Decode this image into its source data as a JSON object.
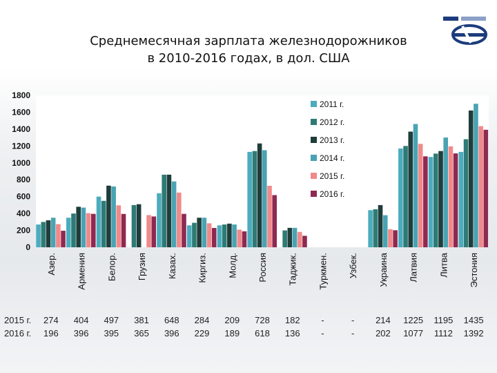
{
  "title_line1": "Среднемесячная зарплата железнодорожников",
  "title_line2": "в 2010-2016 годах, в дол. США",
  "colors": {
    "2011 г.": "#4cacbd",
    "2012 г.": "#2e7b76",
    "2013 г.": "#1f3d3a",
    "2014 г.": "#49a3b3",
    "2015 г.": "#f08a8a",
    "2016 г.": "#8e2a52"
  },
  "chart_data": {
    "type": "bar",
    "ylim": [
      0,
      1800
    ],
    "yticks": [
      "0",
      "200",
      "400",
      "600",
      "800",
      "1000",
      "1200",
      "1400",
      "1600",
      "1800"
    ],
    "categories": [
      "Азер.",
      "Армения",
      "Белор.",
      "Грузия",
      "Казах.",
      "Киргиз.",
      "Молд.",
      "Россия",
      "Таджик.",
      "Туркмен.",
      "Узбек.",
      "Украина",
      "Латвия",
      "Литва",
      "Эстония"
    ],
    "series": [
      {
        "name": "2011 г.",
        "values": [
          270,
          350,
          600,
          0,
          640,
          260,
          260,
          1130,
          0,
          0,
          0,
          440,
          1170,
          1070,
          1130
        ]
      },
      {
        "name": "2012 г.",
        "values": [
          300,
          400,
          550,
          500,
          860,
          290,
          270,
          1140,
          200,
          0,
          0,
          450,
          1200,
          1110,
          1280
        ]
      },
      {
        "name": "2013 г.",
        "values": [
          320,
          480,
          730,
          510,
          860,
          350,
          280,
          1230,
          230,
          0,
          0,
          500,
          1370,
          1140,
          1620
        ]
      },
      {
        "name": "2014 г.",
        "values": [
          350,
          470,
          720,
          0,
          780,
          350,
          270,
          1150,
          230,
          0,
          0,
          380,
          1460,
          1300,
          1700
        ]
      },
      {
        "name": "2015 г.",
        "values": [
          274,
          404,
          497,
          381,
          648,
          284,
          209,
          728,
          182,
          0,
          0,
          214,
          1225,
          1195,
          1435
        ]
      },
      {
        "name": "2016 г.",
        "values": [
          196,
          396,
          395,
          365,
          396,
          229,
          189,
          618,
          136,
          0,
          0,
          202,
          1077,
          1112,
          1392
        ]
      }
    ]
  },
  "table": {
    "rows": [
      {
        "label": "2015 г.",
        "values": [
          "274",
          "404",
          "497",
          "381",
          "648",
          "284",
          "209",
          "728",
          "182",
          "-",
          "-",
          "214",
          "1225",
          "1195",
          "1435"
        ]
      },
      {
        "label": "2016 г.",
        "values": [
          "196",
          "396",
          "395",
          "365",
          "396",
          "229",
          "189",
          "618",
          "136",
          "-",
          "-",
          "202",
          "1077",
          "1112",
          "1392"
        ]
      }
    ]
  }
}
